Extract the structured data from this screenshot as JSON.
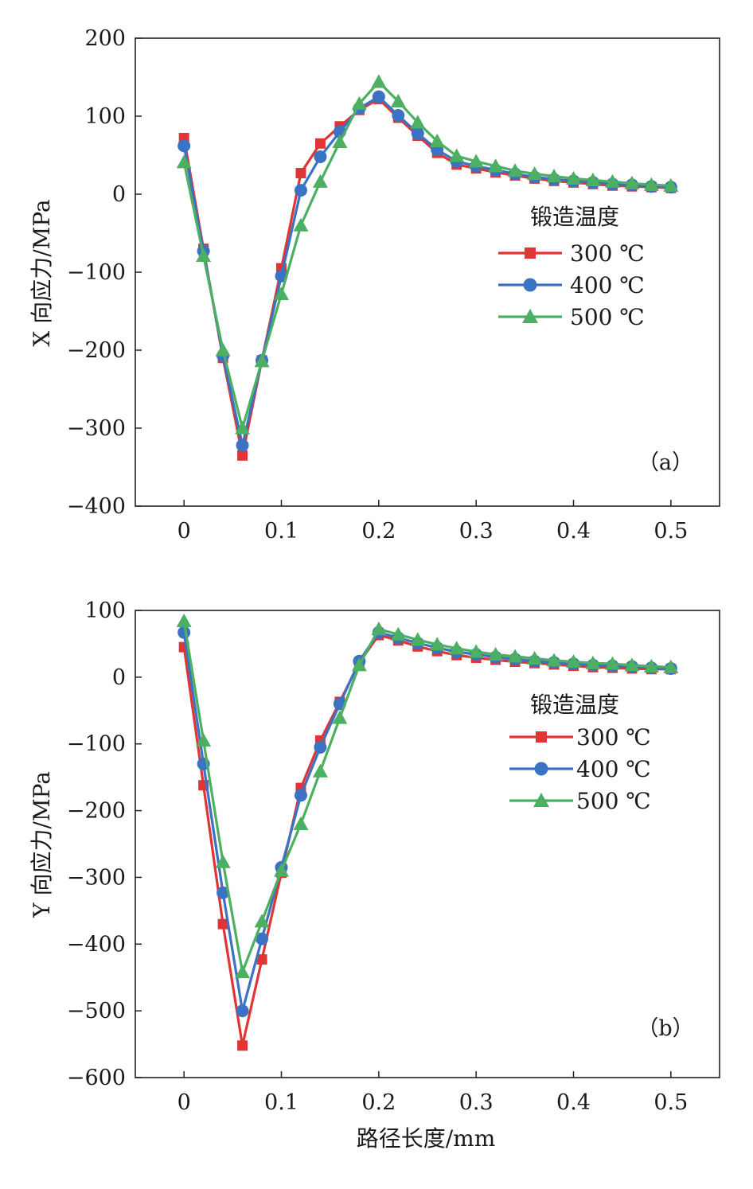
{
  "chart_data": [
    {
      "type": "line",
      "panel_label": "（a）",
      "ylabel": "X 向应力/MPa",
      "xlabel": "",
      "xlim": [
        -0.05,
        0.55
      ],
      "ylim": [
        -400,
        200
      ],
      "xticks": [
        0,
        0.1,
        0.2,
        0.3,
        0.4,
        0.5
      ],
      "xtick_labels": [
        "0",
        "0.1",
        "0.2",
        "0.3",
        "0.4",
        "0.5"
      ],
      "yticks": [
        -400,
        -300,
        -200,
        -100,
        0,
        100,
        200
      ],
      "ytick_labels": [
        "−400",
        "−300",
        "−200",
        "−100",
        "0",
        "100",
        "200"
      ],
      "legend_title": "锻造温度",
      "legend_position": "right-middle",
      "x": [
        0,
        0.02,
        0.04,
        0.06,
        0.08,
        0.1,
        0.12,
        0.14,
        0.16,
        0.18,
        0.2,
        0.22,
        0.24,
        0.26,
        0.28,
        0.3,
        0.32,
        0.34,
        0.36,
        0.38,
        0.4,
        0.42,
        0.44,
        0.46,
        0.48,
        0.5
      ],
      "series": [
        {
          "name": "300 ℃",
          "color": "#e03535",
          "marker": "square",
          "values": [
            72,
            -70,
            -210,
            -335,
            -213,
            -95,
            27,
            65,
            87,
            108,
            122,
            98,
            75,
            53,
            38,
            33,
            28,
            24,
            20,
            17,
            15,
            13,
            11,
            10,
            9,
            8
          ]
        },
        {
          "name": "400 ℃",
          "color": "#3a72c4",
          "marker": "circle",
          "values": [
            62,
            -73,
            -207,
            -322,
            -213,
            -105,
            5,
            48,
            80,
            110,
            125,
            101,
            78,
            57,
            42,
            36,
            31,
            26,
            22,
            19,
            17,
            15,
            13,
            12,
            10,
            9
          ]
        },
        {
          "name": "500 ℃",
          "color": "#4caf61",
          "marker": "triangle",
          "values": [
            41,
            -79,
            -200,
            -300,
            -214,
            -128,
            -40,
            16,
            67,
            116,
            144,
            119,
            92,
            68,
            49,
            42,
            36,
            30,
            26,
            23,
            20,
            18,
            16,
            14,
            12,
            11
          ]
        }
      ]
    },
    {
      "type": "line",
      "panel_label": "（b）",
      "ylabel": "Y 向应力/MPa",
      "xlabel": "路径长度/mm",
      "xlim": [
        -0.05,
        0.55
      ],
      "ylim": [
        -600,
        100
      ],
      "xticks": [
        0,
        0.1,
        0.2,
        0.3,
        0.4,
        0.5
      ],
      "xtick_labels": [
        "0",
        "0.1",
        "0.2",
        "0.3",
        "0.4",
        "0.5"
      ],
      "yticks": [
        -600,
        -500,
        -400,
        -300,
        -200,
        -100,
        0,
        100
      ],
      "ytick_labels": [
        "−600",
        "−500",
        "−400",
        "−300",
        "−200",
        "−100",
        "0",
        "100"
      ],
      "legend_title": "锻造温度",
      "legend_position": "right-middle",
      "x": [
        0,
        0.02,
        0.04,
        0.06,
        0.08,
        0.1,
        0.12,
        0.14,
        0.16,
        0.18,
        0.2,
        0.22,
        0.24,
        0.26,
        0.28,
        0.3,
        0.32,
        0.34,
        0.36,
        0.38,
        0.4,
        0.42,
        0.44,
        0.46,
        0.48,
        0.5
      ],
      "series": [
        {
          "name": "300 ℃",
          "color": "#e03535",
          "marker": "square",
          "values": [
            45,
            -162,
            -370,
            -552,
            -423,
            -293,
            -166,
            -95,
            -37,
            22,
            63,
            55,
            46,
            39,
            33,
            29,
            26,
            23,
            21,
            19,
            17,
            15,
            14,
            13,
            12,
            12
          ]
        },
        {
          "name": "400 ℃",
          "color": "#3a72c4",
          "marker": "circle",
          "values": [
            67,
            -130,
            -323,
            -500,
            -392,
            -285,
            -177,
            -105,
            -40,
            24,
            67,
            59,
            51,
            44,
            38,
            34,
            30,
            27,
            24,
            22,
            20,
            18,
            17,
            16,
            14,
            13
          ]
        },
        {
          "name": "500 ℃",
          "color": "#4caf61",
          "marker": "triangle",
          "values": [
            84,
            -95,
            -277,
            -442,
            -366,
            -290,
            -220,
            -141,
            -61,
            18,
            72,
            64,
            56,
            49,
            43,
            38,
            34,
            31,
            28,
            25,
            23,
            21,
            20,
            18,
            16,
            15
          ]
        }
      ]
    }
  ]
}
